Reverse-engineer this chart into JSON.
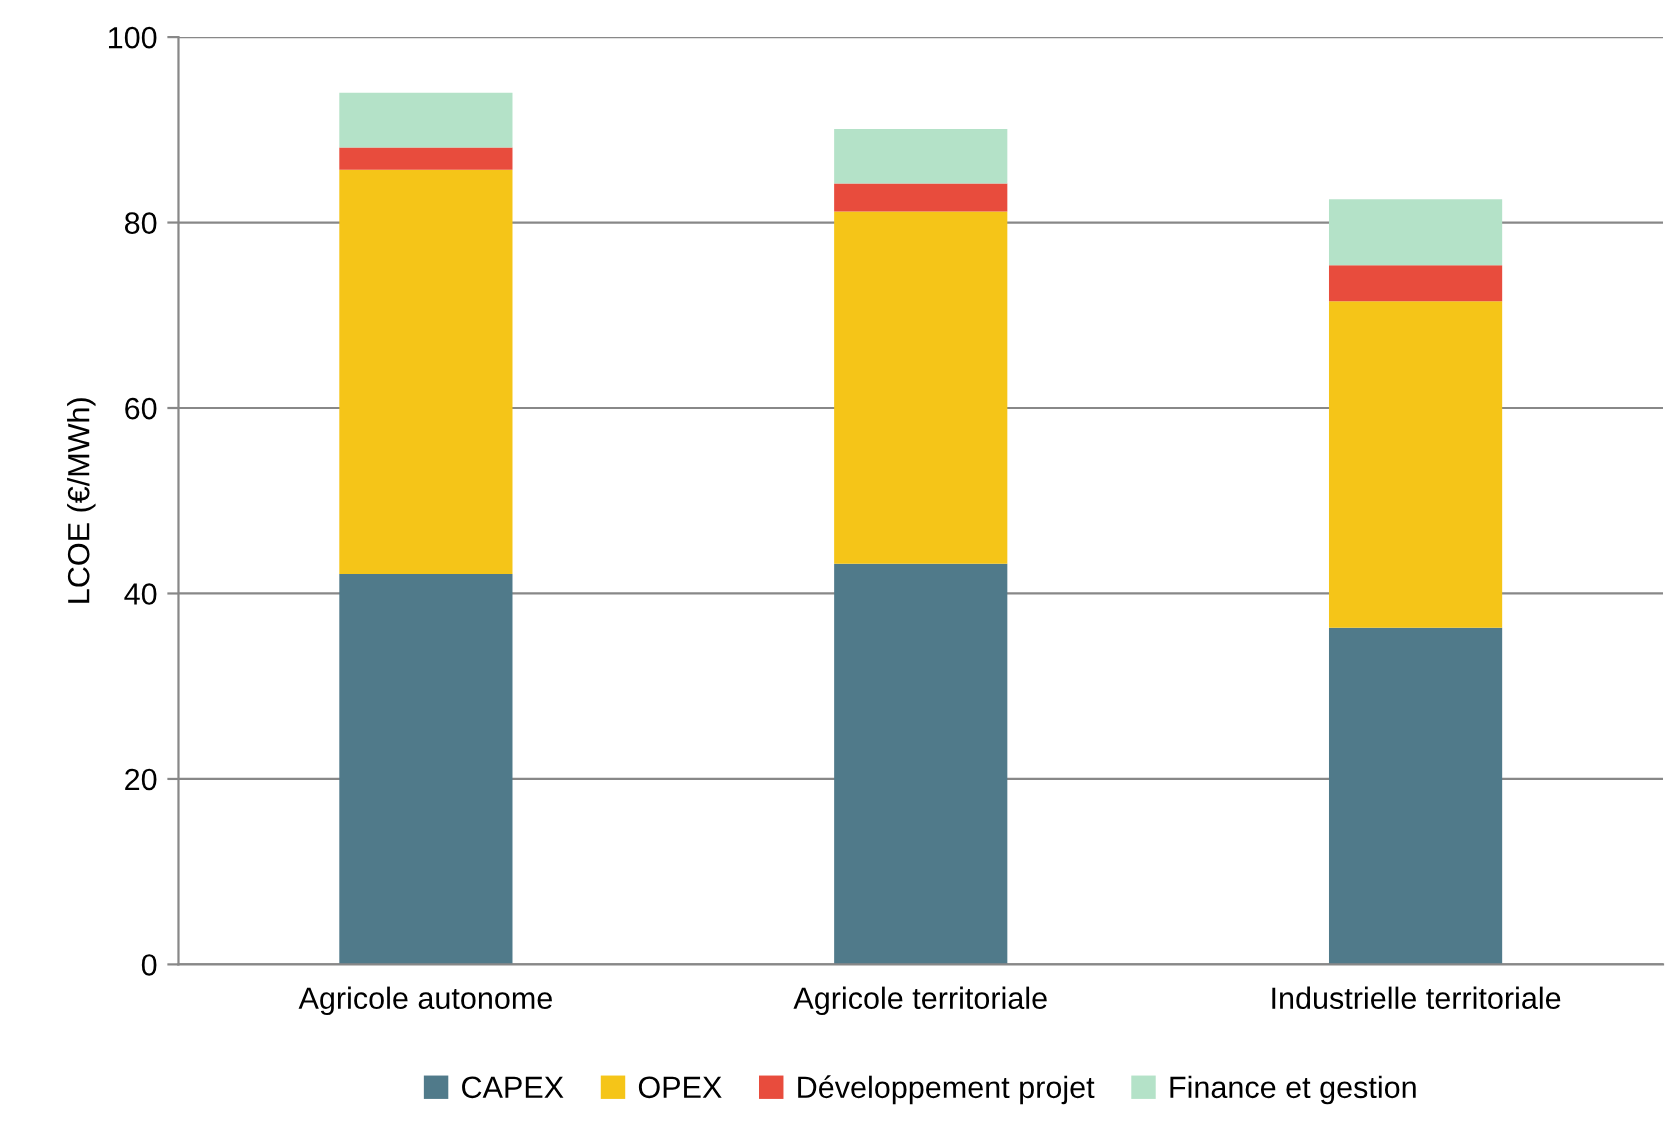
{
  "chart_data": {
    "type": "bar",
    "stacked": true,
    "ylabel": "LCOE (€/MWh)",
    "categories": [
      "Agricole autonome",
      "Agricole territoriale",
      "Industrielle territoriale"
    ],
    "series": [
      {
        "name": "CAPEX",
        "color": "#507a8a",
        "values": [
          42.1,
          43.2,
          36.3
        ]
      },
      {
        "name": "OPEX",
        "color": "#f5c518",
        "values": [
          43.6,
          38.0,
          35.2
        ]
      },
      {
        "name": "Développement projet",
        "color": "#e84c3d",
        "values": [
          2.4,
          3.0,
          3.9
        ]
      },
      {
        "name": "Finance et gestion",
        "color": "#b4e2c8",
        "values": [
          5.9,
          5.9,
          7.1
        ]
      }
    ],
    "ylim": [
      0,
      100
    ],
    "yticks": [
      0,
      20,
      40,
      60,
      80,
      100
    ],
    "grid": "y",
    "legend": "bottom"
  }
}
